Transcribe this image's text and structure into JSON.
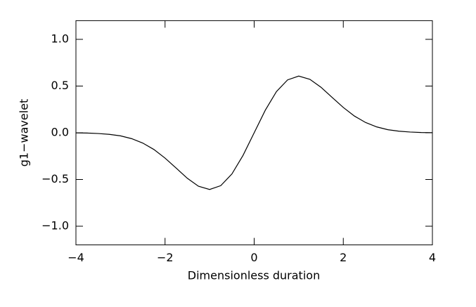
{
  "chart_data": {
    "type": "line",
    "xlabel": "Dimensionless duration",
    "ylabel": "g1−wavelet",
    "x": [
      -4,
      -3.75,
      -3.5,
      -3.25,
      -3,
      -2.75,
      -2.5,
      -2.25,
      -2,
      -1.75,
      -1.5,
      -1.25,
      -1,
      -0.75,
      -0.5,
      -0.25,
      0,
      0.25,
      0.5,
      0.75,
      1,
      1.25,
      1.5,
      1.75,
      2,
      2.25,
      2.5,
      2.75,
      3,
      3.25,
      3.5,
      3.75,
      4
    ],
    "values": [
      -0.001,
      -0.003,
      -0.008,
      -0.017,
      -0.033,
      -0.063,
      -0.11,
      -0.179,
      -0.271,
      -0.378,
      -0.487,
      -0.572,
      -0.607,
      -0.566,
      -0.441,
      -0.242,
      0,
      0.242,
      0.441,
      0.566,
      0.607,
      0.572,
      0.487,
      0.378,
      0.271,
      0.179,
      0.11,
      0.063,
      0.033,
      0.017,
      0.008,
      0.003,
      0.001
    ],
    "color": "#000000",
    "xlim": [
      -4,
      4
    ],
    "ylim": [
      -1.2,
      1.2
    ],
    "xticks": [
      {
        "value": -4,
        "label": "−4"
      },
      {
        "value": -2,
        "label": "−2"
      },
      0,
      2,
      4
    ],
    "yticks": [
      {
        "value": -1,
        "label": "−1.0"
      },
      {
        "value": -0.5,
        "label": "−0.5"
      },
      {
        "value": 0,
        "label": "0.0"
      },
      {
        "value": 0.5,
        "label": "0.5"
      },
      {
        "value": 1,
        "label": "1.0"
      }
    ]
  }
}
